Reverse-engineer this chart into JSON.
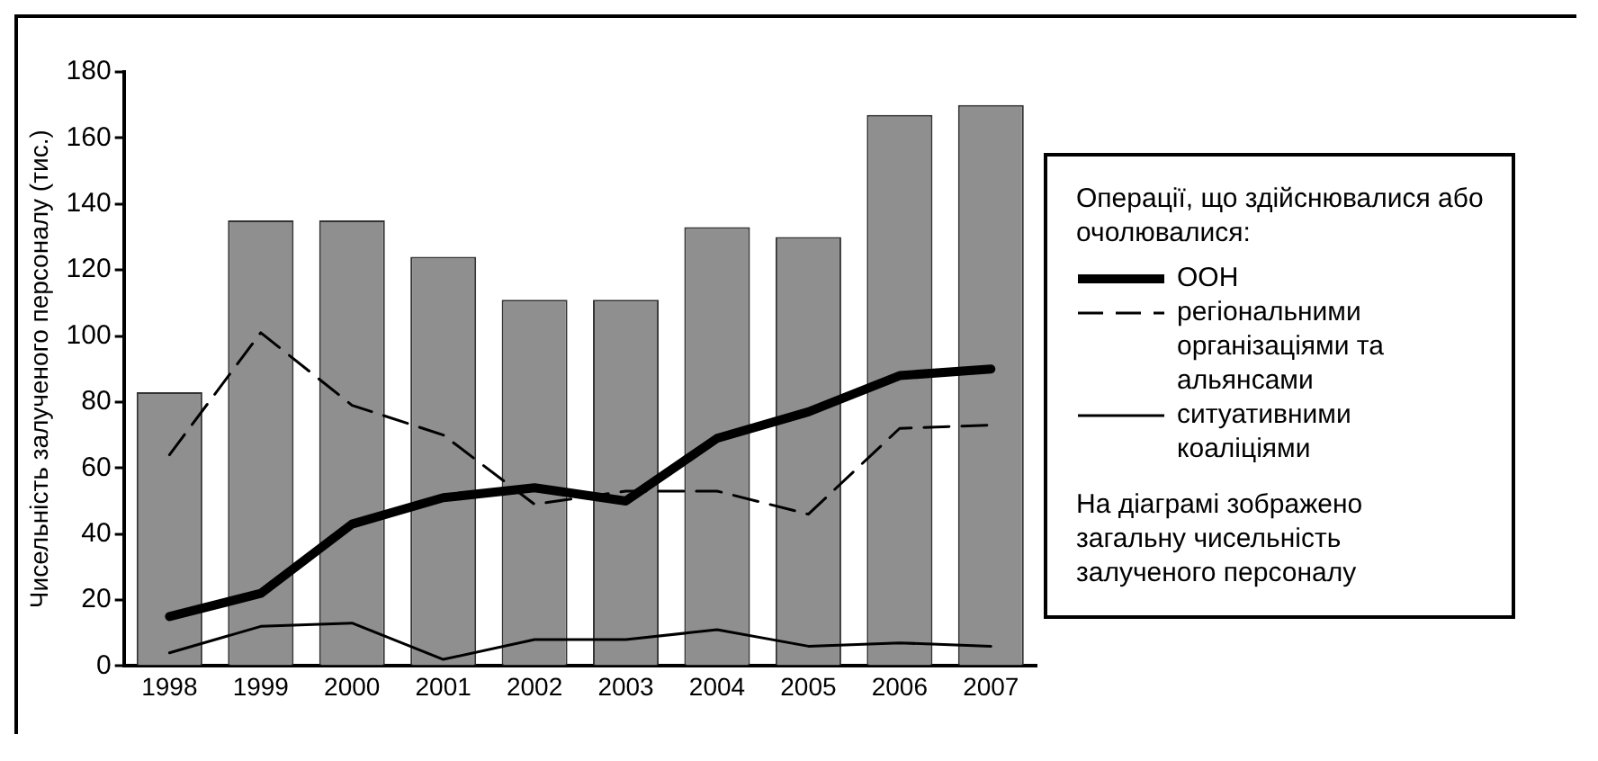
{
  "chart_data": {
    "type": "bar",
    "ylabel": "Чисельність залученого персоналу (тис.)",
    "legend_title": "Операції, що здійснювалися або очолювалися:",
    "legend": "right",
    "grid": false,
    "categories": [
      "1998",
      "1999",
      "2000",
      "2001",
      "2002",
      "2003",
      "2004",
      "2005",
      "2006",
      "2007"
    ],
    "ylim": [
      0,
      180
    ],
    "yticks": [
      0,
      20,
      40,
      60,
      80,
      100,
      120,
      140,
      160,
      180
    ],
    "series": [
      {
        "color": "#8f8f8f",
        "values": [
          83,
          135,
          135,
          124,
          111,
          111,
          133,
          130,
          167,
          170
        ]
      },
      {
        "type": "line",
        "name": "ООН",
        "color": "#000000",
        "line_style": "solid",
        "values": [
          15,
          22,
          43,
          51,
          54,
          50,
          69,
          77,
          88,
          90
        ]
      },
      {
        "type": "line",
        "name": "регіональними організаціями та альянсами",
        "color": "#000000",
        "line_style": "dashed",
        "values": [
          64,
          101,
          79,
          70,
          49,
          53,
          53,
          46,
          72,
          73
        ]
      },
      {
        "type": "line",
        "name": "ситуативними коаліціями",
        "color": "#000000",
        "line_style": "solid",
        "values": [
          4,
          12,
          13,
          2,
          8,
          8,
          11,
          6,
          7,
          6
        ]
      }
    ],
    "annotations": [
      "На діаграмі зображено загальну чисельність залученого персоналу"
    ]
  }
}
